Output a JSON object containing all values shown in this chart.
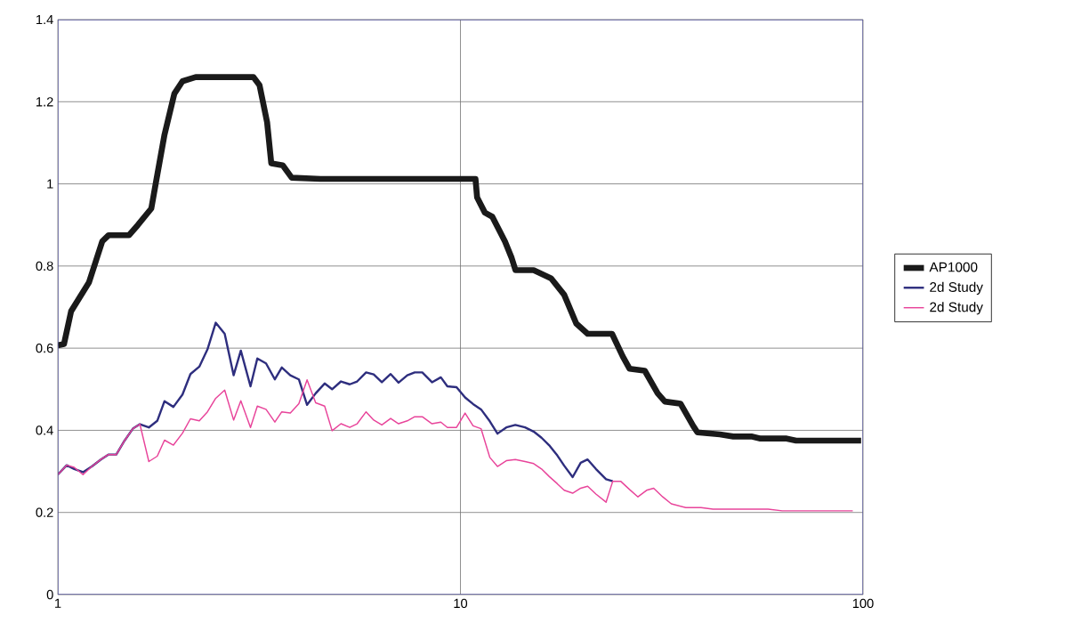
{
  "chart_data": {
    "type": "line",
    "log": "x",
    "grid": true,
    "legend": "right",
    "line_style": "solid",
    "marker": "none",
    "xlim": [
      1,
      100
    ],
    "xticks": [
      1,
      10,
      100
    ],
    "ylim": [
      0,
      1.4
    ],
    "yticks": [
      0,
      0.2,
      0.4,
      0.6,
      0.8,
      1,
      1.2,
      1.4
    ],
    "series": [
      {
        "name": "AP1000",
        "color": "#1a1a1a",
        "x": [
          1,
          1.036,
          1.079,
          1.195,
          1.289,
          1.337,
          1.502,
          1.581,
          1.707,
          1.75,
          1.841,
          1.948,
          2.04,
          2.2,
          3.06,
          3.17,
          3.31,
          3.39,
          3.62,
          3.81,
          4.49,
          10.9,
          11.0,
          11.5,
          12.0,
          12.9,
          13.4,
          13.7,
          15.2,
          16.8,
          18.1,
          19.4,
          20.7,
          23.8,
          25.3,
          26.3,
          28.7,
          30.9,
          32.2,
          35.2,
          37.9,
          38.8,
          44.1,
          47.6,
          52.8,
          55.6,
          64.6,
          68.2,
          98.9
        ],
        "values": [
          0.607,
          0.61,
          0.69,
          0.76,
          0.86,
          0.875,
          0.875,
          0.9,
          0.94,
          1.0,
          1.12,
          1.22,
          1.25,
          1.26,
          1.26,
          1.24,
          1.15,
          1.05,
          1.045,
          1.015,
          1.012,
          1.012,
          0.967,
          0.93,
          0.92,
          0.86,
          0.82,
          0.79,
          0.79,
          0.77,
          0.73,
          0.66,
          0.635,
          0.635,
          0.58,
          0.55,
          0.545,
          0.49,
          0.47,
          0.465,
          0.41,
          0.395,
          0.39,
          0.385,
          0.385,
          0.38,
          0.38,
          0.375,
          0.375
        ]
      },
      {
        "name": "2d Study",
        "color": "#2e2e7e",
        "x": [
          1,
          1.052,
          1.098,
          1.155,
          1.215,
          1.279,
          1.335,
          1.397,
          1.465,
          1.536,
          1.599,
          1.683,
          1.766,
          1.841,
          1.937,
          2.04,
          2.135,
          2.246,
          2.353,
          2.467,
          2.597,
          2.733,
          2.848,
          3.01,
          3.13,
          3.29,
          3.46,
          3.6,
          3.78,
          3.97,
          4.16,
          4.37,
          4.6,
          4.8,
          5.05,
          5.31,
          5.54,
          5.83,
          6.09,
          6.38,
          6.71,
          7.02,
          7.38,
          7.7,
          8.04,
          8.5,
          8.94,
          9.28,
          9.78,
          10.27,
          10.75,
          11.25,
          11.83,
          12.36,
          13.0,
          13.69,
          14.47,
          15.2,
          15.9,
          16.6,
          17.4,
          18.1,
          19.0,
          19.9,
          20.7,
          21.7,
          23.0,
          23.9
        ],
        "values": [
          0.292,
          0.315,
          0.306,
          0.298,
          0.312,
          0.329,
          0.341,
          0.341,
          0.375,
          0.404,
          0.415,
          0.407,
          0.423,
          0.471,
          0.457,
          0.487,
          0.537,
          0.555,
          0.597,
          0.662,
          0.635,
          0.534,
          0.594,
          0.507,
          0.575,
          0.563,
          0.524,
          0.553,
          0.534,
          0.524,
          0.462,
          0.49,
          0.514,
          0.5,
          0.519,
          0.512,
          0.519,
          0.541,
          0.536,
          0.517,
          0.537,
          0.516,
          0.534,
          0.541,
          0.541,
          0.517,
          0.529,
          0.507,
          0.505,
          0.48,
          0.464,
          0.451,
          0.422,
          0.392,
          0.407,
          0.413,
          0.407,
          0.397,
          0.382,
          0.364,
          0.339,
          0.314,
          0.286,
          0.321,
          0.329,
          0.306,
          0.281,
          0.276
        ]
      },
      {
        "name": "2d Study",
        "color": "#e8449a",
        "x": [
          1,
          1.052,
          1.098,
          1.155,
          1.215,
          1.279,
          1.335,
          1.397,
          1.465,
          1.536,
          1.599,
          1.683,
          1.766,
          1.841,
          1.937,
          2.04,
          2.135,
          2.246,
          2.353,
          2.467,
          2.597,
          2.733,
          2.848,
          3.01,
          3.13,
          3.29,
          3.46,
          3.6,
          3.78,
          3.97,
          4.16,
          4.37,
          4.6,
          4.8,
          5.05,
          5.31,
          5.54,
          5.83,
          6.09,
          6.38,
          6.71,
          7.02,
          7.38,
          7.7,
          8.04,
          8.5,
          8.94,
          9.28,
          9.78,
          10.27,
          10.75,
          11.25,
          11.83,
          12.36,
          13.0,
          13.69,
          14.47,
          15.2,
          15.9,
          16.6,
          17.4,
          18.1,
          19.0,
          19.9,
          20.7,
          21.7,
          23.0,
          23.9,
          25.0,
          26.3,
          27.6,
          29.0,
          30.2,
          31.8,
          33.4,
          36.3,
          39.6,
          42.4,
          58.1,
          63.0,
          94.3
        ],
        "values": [
          0.292,
          0.315,
          0.31,
          0.292,
          0.312,
          0.329,
          0.341,
          0.341,
          0.375,
          0.404,
          0.415,
          0.324,
          0.337,
          0.376,
          0.364,
          0.393,
          0.428,
          0.423,
          0.445,
          0.478,
          0.498,
          0.425,
          0.472,
          0.407,
          0.459,
          0.451,
          0.42,
          0.445,
          0.442,
          0.465,
          0.523,
          0.467,
          0.459,
          0.399,
          0.416,
          0.407,
          0.416,
          0.445,
          0.425,
          0.413,
          0.429,
          0.416,
          0.423,
          0.433,
          0.433,
          0.416,
          0.42,
          0.407,
          0.407,
          0.442,
          0.411,
          0.404,
          0.334,
          0.312,
          0.326,
          0.329,
          0.324,
          0.319,
          0.306,
          0.288,
          0.27,
          0.254,
          0.247,
          0.259,
          0.264,
          0.245,
          0.225,
          0.276,
          0.276,
          0.256,
          0.238,
          0.254,
          0.259,
          0.238,
          0.221,
          0.212,
          0.212,
          0.208,
          0.208,
          0.204,
          0.204
        ]
      }
    ]
  }
}
